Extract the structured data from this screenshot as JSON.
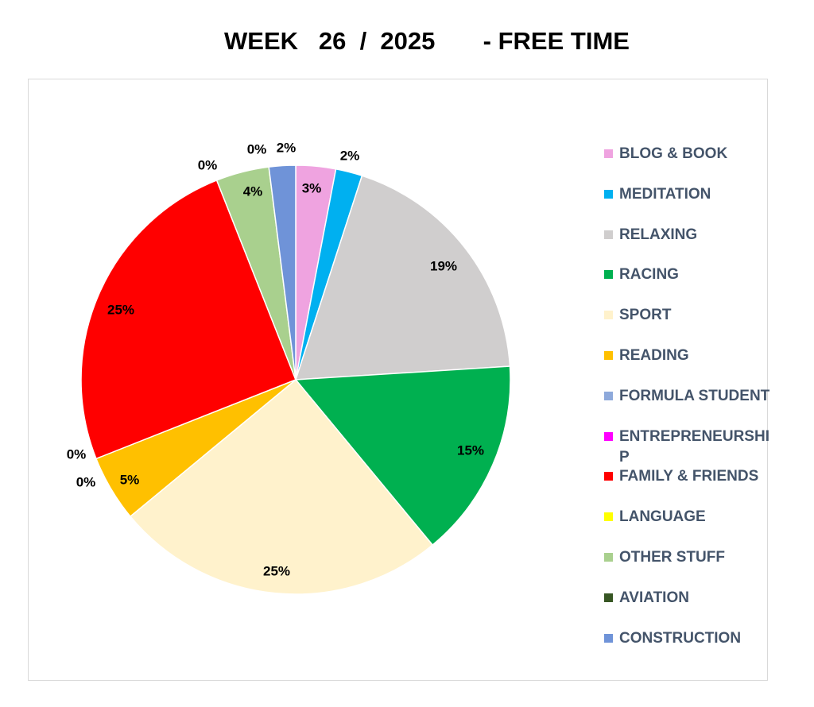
{
  "chart_data": {
    "type": "pie",
    "title": "WEEK   26  /  2025       - FREE TIME",
    "legend_position": "right",
    "slices": [
      {
        "name": "BLOG & BOOK",
        "value": 3,
        "label": "3%",
        "color": "#efa3e0"
      },
      {
        "name": "MEDITATION",
        "value": 2,
        "label": "2%",
        "color": "#00b0f0"
      },
      {
        "name": "RELAXING",
        "value": 19,
        "label": "19%",
        "color": "#d0cece"
      },
      {
        "name": "RACING",
        "value": 15,
        "label": "15%",
        "color": "#00b050"
      },
      {
        "name": "SPORT",
        "value": 25,
        "label": "25%",
        "color": "#fff2cc"
      },
      {
        "name": "READING",
        "value": 5,
        "label": "5%",
        "color": "#ffc000"
      },
      {
        "name": "FORMULA STUDENT",
        "value": 0,
        "label": "0%",
        "color": "#8ea9db"
      },
      {
        "name": "ENTREPRENEURSHIP",
        "value": 0,
        "label": "0%",
        "color": "#ff00ff"
      },
      {
        "name": "FAMILY & FRIENDS",
        "value": 25,
        "label": "25%",
        "color": "#ff0000"
      },
      {
        "name": "LANGUAGE",
        "value": 0,
        "label": "0%",
        "color": "#ffff00"
      },
      {
        "name": "OTHER STUFF",
        "value": 4,
        "label": "4%",
        "color": "#a9d08e"
      },
      {
        "name": "AVIATION",
        "value": 0,
        "label": "0%",
        "color": "#375623"
      },
      {
        "name": "CONSTRUCTION",
        "value": 2,
        "label": "2%",
        "color": "#6f93d8"
      }
    ]
  }
}
